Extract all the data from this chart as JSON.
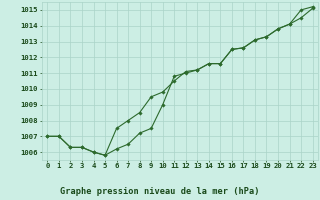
{
  "title": "Graphe pression niveau de la mer (hPa)",
  "xlabel_hours": [
    0,
    1,
    2,
    3,
    4,
    5,
    6,
    7,
    8,
    9,
    10,
    11,
    12,
    13,
    14,
    15,
    16,
    17,
    18,
    19,
    20,
    21,
    22,
    23
  ],
  "series1": [
    1007.0,
    1007.0,
    1006.3,
    1006.3,
    1006.0,
    1005.8,
    1006.2,
    1006.5,
    1007.2,
    1007.5,
    1009.0,
    1010.8,
    1011.0,
    1011.2,
    1011.6,
    1011.6,
    1012.5,
    1012.6,
    1013.1,
    1013.3,
    1013.8,
    1014.1,
    1014.5,
    1015.1
  ],
  "series2": [
    1007.0,
    1007.0,
    1006.3,
    1006.3,
    1006.0,
    1005.8,
    1007.5,
    1008.0,
    1008.5,
    1009.5,
    1009.8,
    1010.5,
    1011.1,
    1011.2,
    1011.6,
    1011.6,
    1012.5,
    1012.6,
    1013.1,
    1013.3,
    1013.8,
    1014.1,
    1015.0,
    1015.2
  ],
  "ylim": [
    1005.5,
    1015.5
  ],
  "yticks": [
    1006,
    1007,
    1008,
    1009,
    1010,
    1011,
    1012,
    1013,
    1014,
    1015
  ],
  "line_color": "#2d6a2d",
  "bg_color": "#cceee4",
  "grid_color": "#aad4c8",
  "title_color": "#1a4a1a",
  "tick_fontsize": 5.2,
  "title_fontsize": 6.2,
  "marker": "D",
  "marker_size": 1.8,
  "line_width": 0.8
}
